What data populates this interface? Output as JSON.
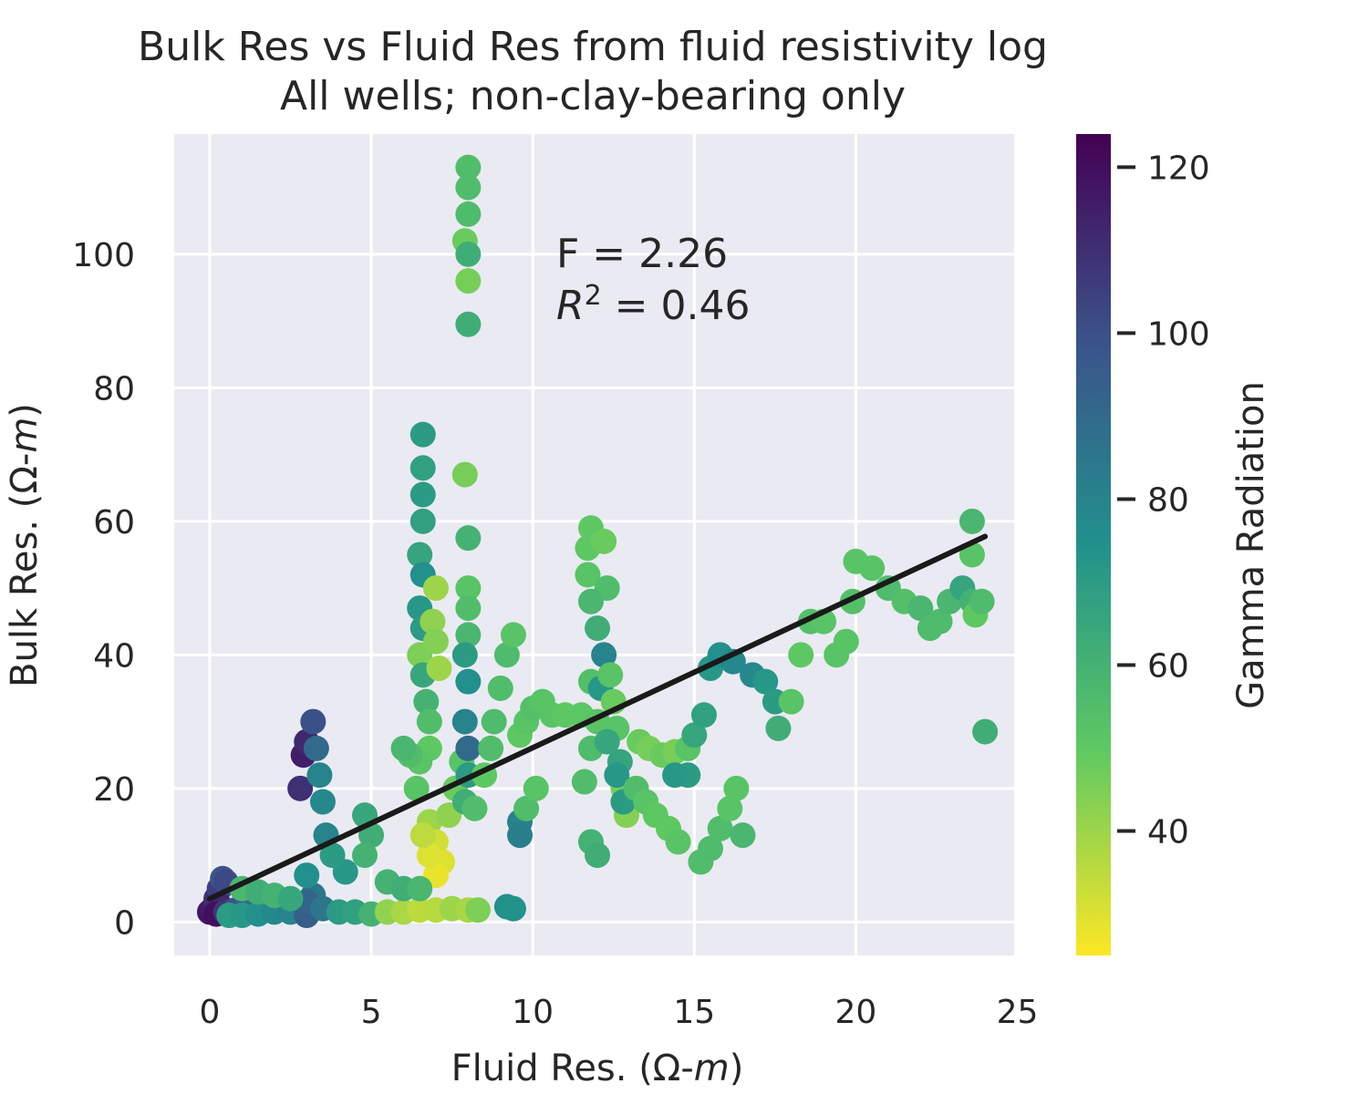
{
  "chart_data": {
    "type": "scatter",
    "title": "Bulk Res vs Fluid Res from fluid resistivity log",
    "subtitle": "All wells; non-clay-bearing only",
    "xlabel_main": "Fluid Res.  (Ω-",
    "xlabel_italic": "m",
    "xlabel_close": ")",
    "ylabel_main": "Bulk Res. (Ω-",
    "ylabel_italic": "m",
    "ylabel_close": ")",
    "xlim": [
      -1.1,
      24.9
    ],
    "ylim": [
      -5,
      118
    ],
    "xticks": [
      0,
      5,
      10,
      15,
      20,
      25
    ],
    "yticks": [
      0,
      20,
      40,
      60,
      80,
      100
    ],
    "grid": true,
    "colorbar": {
      "label": "Gamma Radiation",
      "range": [
        25,
        124
      ],
      "ticks": [
        40,
        60,
        80,
        100,
        120
      ],
      "colormap": "viridis_r"
    },
    "annotation": {
      "line1": "F = 2.26",
      "line2_symbol": "R",
      "line2_exp": "2",
      "line2_value": " = 0.46"
    },
    "fit_line": {
      "slope": 2.26,
      "intercept": 3.5,
      "x_range": [
        0,
        24
      ],
      "color": "#1a1a1a"
    },
    "points": [
      [
        0.0,
        1.5,
        118
      ],
      [
        0.1,
        2.0,
        115
      ],
      [
        0.2,
        3.5,
        110
      ],
      [
        0.3,
        5.0,
        105
      ],
      [
        0.4,
        6.5,
        98
      ],
      [
        0.5,
        6.0,
        102
      ],
      [
        0.3,
        2.5,
        112
      ],
      [
        0.2,
        1.2,
        120
      ],
      [
        0.5,
        1.5,
        108
      ],
      [
        0.8,
        1.8,
        100
      ],
      [
        1.0,
        1.5,
        95
      ],
      [
        1.3,
        1.6,
        90
      ],
      [
        0.6,
        1.0,
        70
      ],
      [
        1.0,
        1.0,
        72
      ],
      [
        1.5,
        1.2,
        75
      ],
      [
        2.0,
        1.5,
        78
      ],
      [
        2.5,
        1.5,
        80
      ],
      [
        3.0,
        1.0,
        95
      ],
      [
        2.8,
        20.0,
        110
      ],
      [
        2.9,
        25.0,
        115
      ],
      [
        3.0,
        27.0,
        112
      ],
      [
        3.2,
        30.0,
        100
      ],
      [
        3.3,
        26.0,
        90
      ],
      [
        3.4,
        22.0,
        80
      ],
      [
        3.5,
        18.0,
        78
      ],
      [
        3.6,
        13.0,
        80
      ],
      [
        3.2,
        4.0,
        85
      ],
      [
        3.0,
        3.0,
        92
      ],
      [
        3.5,
        2.0,
        85
      ],
      [
        4.0,
        1.5,
        70
      ],
      [
        4.5,
        1.5,
        68
      ],
      [
        5.0,
        1.2,
        60
      ],
      [
        5.5,
        1.5,
        42
      ],
      [
        6.0,
        1.5,
        38
      ],
      [
        6.5,
        1.8,
        35
      ],
      [
        7.0,
        1.8,
        36
      ],
      [
        7.5,
        2.0,
        40
      ],
      [
        8.0,
        1.8,
        38
      ],
      [
        8.3,
        1.8,
        45
      ],
      [
        4.8,
        16.0,
        65
      ],
      [
        5.0,
        13.0,
        62
      ],
      [
        4.8,
        10.0,
        60
      ],
      [
        6.6,
        73.0,
        70
      ],
      [
        6.6,
        68.0,
        68
      ],
      [
        6.6,
        64.0,
        70
      ],
      [
        6.6,
        60.0,
        68
      ],
      [
        6.5,
        55.0,
        66
      ],
      [
        6.6,
        52.0,
        75
      ],
      [
        6.5,
        47.0,
        72
      ],
      [
        6.6,
        44.0,
        70
      ],
      [
        6.5,
        40.0,
        45
      ],
      [
        6.6,
        37.0,
        65
      ],
      [
        6.7,
        33.0,
        60
      ],
      [
        6.8,
        30.0,
        55
      ],
      [
        7.0,
        50.0,
        40
      ],
      [
        6.9,
        45.0,
        42
      ],
      [
        7.0,
        42.0,
        44
      ],
      [
        7.1,
        38.0,
        40
      ],
      [
        6.8,
        26.0,
        50
      ],
      [
        6.5,
        24.0,
        52
      ],
      [
        6.2,
        25.0,
        55
      ],
      [
        6.0,
        26.0,
        58
      ],
      [
        6.4,
        20.0,
        52
      ],
      [
        6.8,
        15.0,
        40
      ],
      [
        7.0,
        12.0,
        32
      ],
      [
        7.2,
        9.0,
        30
      ],
      [
        7.0,
        7.0,
        28
      ],
      [
        6.8,
        10.0,
        30
      ],
      [
        6.6,
        13.0,
        35
      ],
      [
        7.4,
        16.0,
        42
      ],
      [
        7.6,
        20.0,
        48
      ],
      [
        7.8,
        24.0,
        52
      ],
      [
        8.0,
        113.0,
        55
      ],
      [
        8.0,
        110.0,
        55
      ],
      [
        8.0,
        106.0,
        56
      ],
      [
        7.9,
        102.0,
        48
      ],
      [
        8.0,
        100.0,
        62
      ],
      [
        8.0,
        96.0,
        46
      ],
      [
        8.0,
        89.5,
        62
      ],
      [
        7.9,
        67.0,
        46
      ],
      [
        8.0,
        57.5,
        60
      ],
      [
        8.0,
        50.0,
        52
      ],
      [
        8.0,
        47.0,
        55
      ],
      [
        8.0,
        43.0,
        58
      ],
      [
        7.9,
        40.0,
        70
      ],
      [
        8.0,
        36.0,
        75
      ],
      [
        7.9,
        30.0,
        80
      ],
      [
        8.0,
        26.0,
        90
      ],
      [
        8.0,
        22.0,
        70
      ],
      [
        7.9,
        18.0,
        62
      ],
      [
        8.2,
        17.0,
        55
      ],
      [
        8.5,
        22.0,
        50
      ],
      [
        8.7,
        26.0,
        55
      ],
      [
        8.8,
        30.0,
        56
      ],
      [
        9.0,
        35.0,
        55
      ],
      [
        9.2,
        40.0,
        56
      ],
      [
        9.4,
        43.0,
        52
      ],
      [
        9.6,
        28.0,
        50
      ],
      [
        9.8,
        30.0,
        52
      ],
      [
        10.0,
        32.0,
        54
      ],
      [
        10.3,
        33.0,
        52
      ],
      [
        10.6,
        31.0,
        52
      ],
      [
        11.0,
        31.0,
        50
      ],
      [
        11.5,
        31.0,
        51
      ],
      [
        11.8,
        36.0,
        54
      ],
      [
        12.1,
        35.0,
        72
      ],
      [
        12.0,
        30.0,
        52
      ],
      [
        11.8,
        26.0,
        56
      ],
      [
        11.6,
        21.0,
        55
      ],
      [
        11.7,
        52.0,
        52
      ],
      [
        11.7,
        56.0,
        50
      ],
      [
        11.8,
        59.0,
        50
      ],
      [
        12.2,
        57.0,
        48
      ],
      [
        12.3,
        50.0,
        55
      ],
      [
        11.8,
        48.0,
        58
      ],
      [
        12.0,
        44.0,
        62
      ],
      [
        12.2,
        40.0,
        80
      ],
      [
        12.4,
        37.0,
        52
      ],
      [
        12.5,
        33.0,
        48
      ],
      [
        12.6,
        29.0,
        52
      ],
      [
        12.7,
        24.0,
        66
      ],
      [
        12.8,
        20.0,
        46
      ],
      [
        12.9,
        16.0,
        44
      ],
      [
        12.8,
        18.0,
        70
      ],
      [
        12.6,
        22.0,
        72
      ],
      [
        12.3,
        27.0,
        65
      ],
      [
        11.8,
        12.0,
        60
      ],
      [
        12.0,
        10.0,
        62
      ],
      [
        9.6,
        15.0,
        80
      ],
      [
        9.6,
        13.0,
        82
      ],
      [
        9.8,
        17.0,
        55
      ],
      [
        10.1,
        20.0,
        52
      ],
      [
        9.2,
        2.3,
        75
      ],
      [
        9.4,
        2.0,
        74
      ],
      [
        13.3,
        27.0,
        48
      ],
      [
        13.6,
        26.0,
        46
      ],
      [
        14.0,
        25.0,
        48
      ],
      [
        14.4,
        25.5,
        46
      ],
      [
        14.8,
        26.0,
        52
      ],
      [
        15.0,
        28.0,
        65
      ],
      [
        15.3,
        31.0,
        68
      ],
      [
        15.5,
        38.0,
        72
      ],
      [
        15.8,
        40.0,
        75
      ],
      [
        16.2,
        39.0,
        78
      ],
      [
        16.8,
        37.0,
        78
      ],
      [
        17.2,
        36.0,
        72
      ],
      [
        17.5,
        33.0,
        70
      ],
      [
        17.6,
        29.0,
        62
      ],
      [
        18.0,
        33.0,
        52
      ],
      [
        18.3,
        40.0,
        50
      ],
      [
        18.6,
        45.0,
        54
      ],
      [
        19.0,
        45.0,
        52
      ],
      [
        19.4,
        40.0,
        52
      ],
      [
        19.7,
        42.0,
        52
      ],
      [
        19.9,
        48.0,
        54
      ],
      [
        20.0,
        54.0,
        52
      ],
      [
        20.5,
        53.0,
        52
      ],
      [
        21.0,
        50.0,
        56
      ],
      [
        21.5,
        48.0,
        54
      ],
      [
        22.0,
        47.0,
        58
      ],
      [
        22.3,
        44.0,
        56
      ],
      [
        22.6,
        45.0,
        56
      ],
      [
        22.9,
        48.0,
        58
      ],
      [
        23.3,
        50.0,
        66
      ],
      [
        23.6,
        48.0,
        60
      ],
      [
        23.6,
        55.0,
        52
      ],
      [
        23.6,
        60.0,
        58
      ],
      [
        23.7,
        46.0,
        50
      ],
      [
        23.9,
        48.0,
        56
      ],
      [
        24.0,
        28.5,
        62
      ],
      [
        13.2,
        20.0,
        55
      ],
      [
        13.5,
        18.0,
        52
      ],
      [
        13.8,
        16.0,
        50
      ],
      [
        14.2,
        14.0,
        50
      ],
      [
        14.5,
        12.0,
        52
      ],
      [
        14.8,
        22.0,
        70
      ],
      [
        15.2,
        9.0,
        55
      ],
      [
        15.5,
        11.0,
        56
      ],
      [
        15.8,
        14.0,
        55
      ],
      [
        16.1,
        17.0,
        52
      ],
      [
        16.3,
        20.0,
        52
      ],
      [
        16.5,
        13.0,
        58
      ],
      [
        14.4,
        22.0,
        72
      ],
      [
        4.2,
        7.5,
        72
      ],
      [
        3.8,
        10.0,
        70
      ],
      [
        3.0,
        7.0,
        75
      ],
      [
        1.0,
        5.0,
        58
      ],
      [
        1.5,
        4.5,
        62
      ],
      [
        2.0,
        4.0,
        60
      ],
      [
        2.5,
        3.5,
        65
      ],
      [
        5.5,
        6.0,
        60
      ],
      [
        6.0,
        5.0,
        62
      ],
      [
        6.5,
        5.0,
        58
      ]
    ]
  }
}
